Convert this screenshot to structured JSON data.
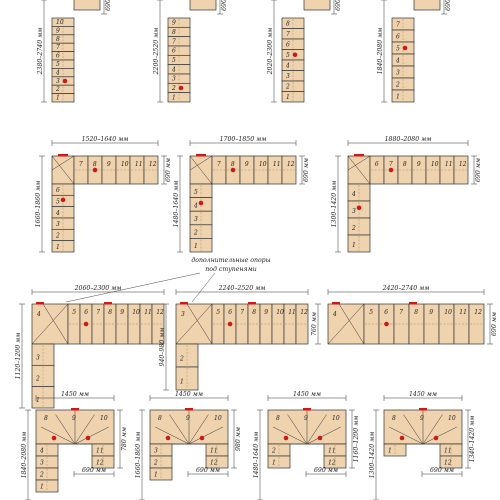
{
  "colors": {
    "tread": "#efd3ae",
    "edge": "#333333",
    "support": "#d01818",
    "dash": "#9a7b5a"
  },
  "annotation": {
    "line1": "дополнительные опоры",
    "line2": "под ступенями"
  },
  "rows": [
    {
      "row": 1,
      "layouts": [
        {
          "dims": [
            "2380–2740 мм",
            "690"
          ],
          "steps": [
            "10",
            "9",
            "8",
            "7",
            "6",
            "5",
            "4",
            "3",
            "2",
            "1"
          ]
        },
        {
          "dims": [
            "2200–2520 мм",
            "690"
          ],
          "steps": [
            "9",
            "8",
            "7",
            "6",
            "5",
            "4",
            "3",
            "2",
            "1"
          ]
        },
        {
          "dims": [
            "2020–2300 мм",
            "690"
          ],
          "steps": [
            "8",
            "7",
            "6",
            "5",
            "4",
            "3",
            "2",
            "1"
          ]
        },
        {
          "dims": [
            "1840–2080 мм",
            "690"
          ],
          "steps": [
            "7",
            "6",
            "5",
            "4",
            "3",
            "2",
            "1"
          ]
        }
      ]
    },
    {
      "row": 2,
      "layouts": [
        {
          "dims": [
            "1520–1640 мм",
            "1660–1860 мм",
            "690 мм"
          ],
          "steps": [
            "1",
            "2",
            "3",
            "4",
            "5",
            "6",
            "7",
            "8",
            "9",
            "10",
            "11",
            "12"
          ]
        },
        {
          "dims": [
            "1700–1850 мм",
            "1480–1640 мм",
            "690 мм"
          ],
          "steps": [
            "1",
            "2",
            "3",
            "4",
            "5",
            "6",
            "7",
            "8",
            "9",
            "10",
            "11",
            "12"
          ]
        },
        {
          "dims": [
            "1880–2080 мм",
            "1300–1420 мм",
            "690 мм"
          ],
          "steps": [
            "1",
            "2",
            "3",
            "4",
            "5",
            "6",
            "7",
            "8",
            "9",
            "10",
            "11",
            "12"
          ]
        }
      ]
    },
    {
      "row": 3,
      "layouts": [
        {
          "dims": [
            "2060–2300 мм",
            "1120–1200 мм"
          ],
          "steps": [
            "1",
            "2",
            "3",
            "4",
            "5",
            "6",
            "7",
            "8",
            "9",
            "10",
            "11",
            "12"
          ]
        },
        {
          "dims": [
            "2240–2520 мм",
            "940–980 мм"
          ],
          "steps": [
            "1",
            "2",
            "3",
            "4",
            "5",
            "6",
            "7",
            "8",
            "9",
            "10",
            "11",
            "12"
          ]
        },
        {
          "dims": [
            "2420–2740 мм",
            "760 мм",
            "690 мм"
          ],
          "steps": [
            "1",
            "2",
            "3",
            "4",
            "5",
            "6",
            "7",
            "8",
            "9",
            "10",
            "11",
            "12"
          ]
        }
      ]
    },
    {
      "row": 4,
      "layouts": [
        {
          "dims": [
            "1450 мм",
            "1840–2080 мм",
            "780 мм",
            "690 мм"
          ],
          "steps": [
            "1",
            "2",
            "3",
            "4",
            "5",
            "6",
            "7",
            "8",
            "9",
            "10",
            "11",
            "12"
          ]
        },
        {
          "dims": [
            "1450 мм",
            "1660–1860 мм",
            "980 мм",
            "690 мм"
          ],
          "steps": [
            "1",
            "2",
            "3",
            "4",
            "5",
            "6",
            "7",
            "8",
            "9",
            "10",
            "11",
            "12"
          ]
        },
        {
          "dims": [
            "1450 мм",
            "1480–1640 мм",
            "1160–1200 мм",
            "690 мм"
          ],
          "steps": [
            "1",
            "2",
            "3",
            "4",
            "5",
            "6",
            "7",
            "8",
            "9",
            "10",
            "11",
            "12"
          ]
        },
        {
          "dims": [
            "1450 мм",
            "1300–1420 мм",
            "1340–1420 мм",
            "690 мм"
          ],
          "steps": [
            "1",
            "2",
            "3",
            "4",
            "5",
            "6",
            "7",
            "8",
            "9",
            "10",
            "11",
            "12"
          ]
        }
      ]
    }
  ]
}
